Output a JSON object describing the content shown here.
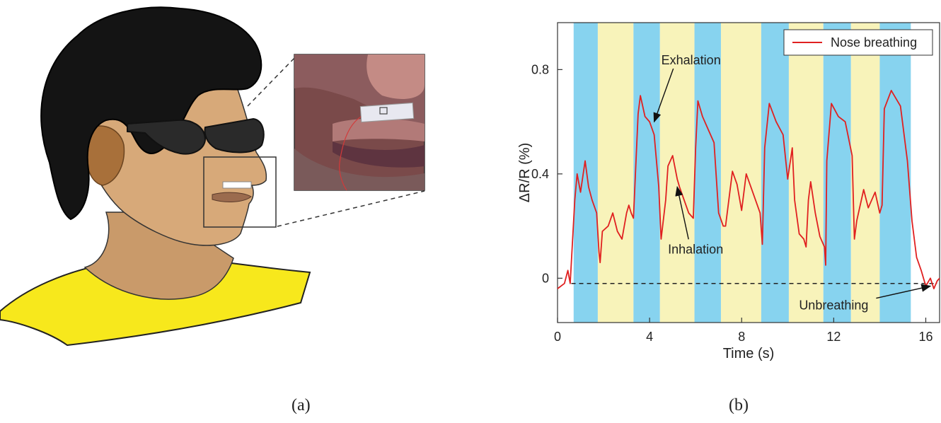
{
  "figure": {
    "caption_a": "(a)",
    "caption_b": "(b)"
  },
  "chart_data": {
    "type": "line",
    "title": "",
    "xlabel": "Time (s)",
    "ylabel": "ΔR/R (%)",
    "xlim": [
      0,
      16.6
    ],
    "ylim": [
      -0.17,
      0.98
    ],
    "x_ticks": [
      0,
      4,
      8,
      12,
      16
    ],
    "x_tick_labels": [
      "0",
      "4",
      "8",
      "12",
      "16"
    ],
    "y_ticks": [
      0,
      0.4,
      0.8
    ],
    "y_tick_labels": [
      "0",
      "0.4",
      "0.8"
    ],
    "grid": false,
    "legend_position": "top-right",
    "series": [
      {
        "name": "Nose breathing",
        "color": "#e02020",
        "x": [
          0.0,
          0.3,
          0.45,
          0.55,
          0.75,
          0.85,
          1.0,
          1.2,
          1.35,
          1.5,
          1.7,
          1.8,
          1.85,
          1.95,
          2.2,
          2.4,
          2.6,
          2.8,
          3.0,
          3.1,
          3.2,
          3.3,
          3.5,
          3.6,
          3.8,
          4.0,
          4.2,
          4.4,
          4.5,
          4.7,
          4.8,
          5.0,
          5.2,
          5.3,
          5.5,
          5.7,
          5.9,
          6.0,
          6.1,
          6.3,
          6.5,
          6.8,
          7.0,
          7.2,
          7.3,
          7.6,
          7.8,
          8.0,
          8.2,
          8.4,
          8.6,
          8.8,
          8.9,
          9.0,
          9.2,
          9.5,
          9.8,
          10.0,
          10.2,
          10.3,
          10.5,
          10.7,
          10.8,
          10.9,
          11.0,
          11.2,
          11.4,
          11.6,
          11.65,
          11.7,
          11.9,
          12.2,
          12.5,
          12.8,
          12.9,
          13.0,
          13.3,
          13.5,
          13.8,
          14.0,
          14.1,
          14.2,
          14.5,
          14.9,
          15.2,
          15.4,
          15.6,
          15.8,
          16.0,
          16.2,
          16.35,
          16.5,
          16.6
        ],
        "y": [
          -0.04,
          -0.02,
          0.03,
          -0.02,
          0.3,
          0.4,
          0.33,
          0.45,
          0.35,
          0.3,
          0.25,
          0.1,
          0.06,
          0.18,
          0.2,
          0.25,
          0.18,
          0.15,
          0.25,
          0.28,
          0.25,
          0.23,
          0.63,
          0.7,
          0.62,
          0.6,
          0.55,
          0.35,
          0.15,
          0.3,
          0.43,
          0.47,
          0.38,
          0.35,
          0.3,
          0.25,
          0.23,
          0.5,
          0.68,
          0.62,
          0.58,
          0.52,
          0.25,
          0.2,
          0.2,
          0.41,
          0.36,
          0.26,
          0.4,
          0.35,
          0.3,
          0.25,
          0.13,
          0.5,
          0.67,
          0.6,
          0.55,
          0.38,
          0.5,
          0.3,
          0.17,
          0.15,
          0.12,
          0.3,
          0.37,
          0.25,
          0.16,
          0.12,
          0.05,
          0.45,
          0.67,
          0.62,
          0.6,
          0.47,
          0.15,
          0.22,
          0.34,
          0.27,
          0.33,
          0.25,
          0.28,
          0.65,
          0.72,
          0.66,
          0.45,
          0.22,
          0.08,
          0.03,
          -0.03,
          0.0,
          -0.04,
          -0.01,
          0.0
        ]
      }
    ],
    "phase_bands": {
      "colors": {
        "exhalation": "#87d3ef",
        "inhalation": "#f8f3ba"
      },
      "segments": [
        {
          "phase": "exhalation",
          "start": 0.7,
          "end": 1.75
        },
        {
          "phase": "inhalation",
          "start": 1.75,
          "end": 3.3
        },
        {
          "phase": "exhalation",
          "start": 3.3,
          "end": 4.45
        },
        {
          "phase": "inhalation",
          "start": 4.45,
          "end": 5.95
        },
        {
          "phase": "exhalation",
          "start": 5.95,
          "end": 7.1
        },
        {
          "phase": "inhalation",
          "start": 7.1,
          "end": 8.85
        },
        {
          "phase": "exhalation",
          "start": 8.85,
          "end": 10.05
        },
        {
          "phase": "inhalation",
          "start": 10.05,
          "end": 11.55
        },
        {
          "phase": "exhalation",
          "start": 11.55,
          "end": 12.75
        },
        {
          "phase": "inhalation",
          "start": 12.75,
          "end": 14.0
        },
        {
          "phase": "exhalation",
          "start": 14.0,
          "end": 15.35
        }
      ]
    },
    "baseline": {
      "y": -0.02,
      "x_start": 0.6,
      "x_end": 16.5,
      "style": "dashed"
    },
    "annotations": [
      {
        "text": "Exhalation",
        "text_x": 5.8,
        "text_y": 0.82,
        "arrow_to_x": 4.2,
        "arrow_to_y": 0.6
      },
      {
        "text": "Inhalation",
        "text_x": 6.0,
        "text_y": 0.095,
        "arrow_to_x": 5.2,
        "arrow_to_y": 0.35
      },
      {
        "text": "Unbreathing",
        "text_x": 12.0,
        "text_y": -0.12,
        "arrow_to_x": 16.2,
        "arrow_to_y": -0.03
      }
    ]
  }
}
